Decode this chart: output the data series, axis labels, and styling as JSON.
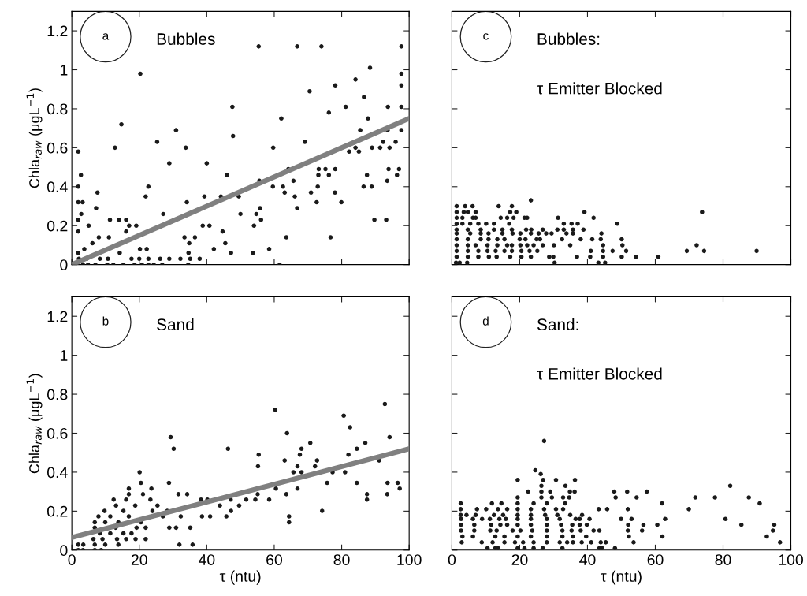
{
  "chart_data": [
    {
      "type": "scatter",
      "ylabel": "Chla$_{raw}$ (μgL$^{−1}$)",
      "xlim": [
        0,
        100
      ],
      "ylim": [
        0,
        1.3
      ],
      "xticks": [
        0,
        20,
        40,
        60,
        80,
        100
      ],
      "yticks": [
        0,
        0.2,
        0.4,
        0.6,
        0.8,
        1,
        1.2
      ],
      "tick_labels": "y",
      "annotations": [
        "a",
        "Bubbles"
      ],
      "series": [
        {
          "color": "#1a1a1a",
          "marker": "circle",
          "x": [
            55.4,
            66.8,
            74.0,
            97.7,
            20.3,
            88.4,
            97.7,
            97.7,
            97.7,
            97.7,
            84.1,
            78.1,
            70.5,
            86.6,
            81.2,
            93.7,
            47.6,
            76.2,
            62.1,
            87.8,
            14.7,
            30.9,
            85.5,
            93.6,
            47.8,
            25.3,
            69.1,
            92.3,
            96.0,
            1.9,
            12.8,
            33.8,
            59.7,
            84.1,
            89.0,
            91.4,
            94.2,
            82.2,
            85.1,
            28.9,
            40.0,
            2.7,
            46.0,
            73.1,
            76.2,
            87.5,
            96.4,
            64.2,
            73.2,
            75.2,
            78.1,
            93.9,
            97.0,
            55.6,
            65.7,
            93.5,
            1.9,
            22.7,
            59.6,
            62.6,
            72.9,
            86.5,
            88.9,
            7.6,
            63.1,
            70.9,
            78.0,
            21.9,
            39.3,
            44.2,
            49.5,
            66.1,
            34.1,
            72.6,
            79.9,
            7.2,
            55.8,
            66.8,
            50.0,
            54.7,
            27.1,
            11.3,
            14.0,
            16.1,
            56.1,
            89.7,
            93.2,
            5.0,
            17.0,
            19.1,
            38.8,
            40.8,
            54.0,
            1.9,
            16.1,
            44.7,
            8.0,
            11.0,
            33.4,
            36.5,
            63.6,
            76.7,
            6.1,
            34.8,
            45.5,
            20.2,
            42.1,
            58.5,
            22.2,
            14.2,
            34.6,
            47.2,
            53.7,
            1.9,
            3.7,
            1.9,
            1.9,
            3.2,
            2.8,
            1.6,
            3.3,
            4.8,
            7.0,
            10.5,
            12.3,
            15.3,
            18.6,
            20.8,
            22.7,
            24.3,
            26.8,
            34.5,
            61.6,
            2.1,
            4.4,
            8.3,
            10.7,
            17.7,
            20.0,
            22.7,
            26.2,
            28.9,
            32.2,
            35.1,
            37.9
          ],
          "values": [
            1.12,
            1.12,
            1.12,
            1.12,
            0.98,
            1.01,
            0.98,
            0.92,
            0.81,
            0.69,
            0.95,
            0.92,
            0.89,
            0.86,
            0.81,
            0.81,
            0.81,
            0.78,
            0.75,
            0.75,
            0.72,
            0.69,
            0.69,
            0.69,
            0.66,
            0.63,
            0.63,
            0.63,
            0.63,
            0.58,
            0.6,
            0.6,
            0.6,
            0.6,
            0.6,
            0.6,
            0.6,
            0.58,
            0.58,
            0.52,
            0.52,
            0.46,
            0.46,
            0.46,
            0.46,
            0.46,
            0.46,
            0.49,
            0.49,
            0.49,
            0.49,
            0.49,
            0.49,
            0.43,
            0.43,
            0.43,
            0.4,
            0.4,
            0.4,
            0.4,
            0.4,
            0.4,
            0.4,
            0.37,
            0.37,
            0.37,
            0.37,
            0.35,
            0.35,
            0.35,
            0.35,
            0.35,
            0.32,
            0.32,
            0.32,
            0.29,
            0.29,
            0.29,
            0.26,
            0.26,
            0.26,
            0.23,
            0.23,
            0.23,
            0.23,
            0.23,
            0.23,
            0.2,
            0.2,
            0.2,
            0.2,
            0.2,
            0.2,
            0.17,
            0.17,
            0.17,
            0.14,
            0.14,
            0.14,
            0.14,
            0.14,
            0.14,
            0.11,
            0.11,
            0.11,
            0.08,
            0.08,
            0.08,
            0.08,
            0.06,
            0.06,
            0.06,
            0.06,
            0.06,
            0.08,
            0.23,
            0.32,
            0.32,
            0.26,
            0,
            0,
            0,
            0,
            0,
            0,
            0,
            0,
            0,
            0,
            0,
            0,
            0,
            0,
            0.03,
            0.03,
            0.03,
            0.03,
            0.03,
            0.03,
            0.03,
            0.03,
            0.03,
            0.03,
            0.03,
            0.03
          ]
        },
        {
          "type": "line",
          "color": "#808080",
          "line_style": "solid",
          "x": [
            0,
            100
          ],
          "values": [
            0.0,
            0.75
          ]
        }
      ]
    },
    {
      "type": "scatter",
      "xlim": [
        0,
        100
      ],
      "ylim": [
        0,
        1.3
      ],
      "xticks": [
        0,
        20,
        40,
        60,
        80,
        100
      ],
      "yticks": [
        0,
        0.2,
        0.4,
        0.6,
        0.8,
        1,
        1.2
      ],
      "tick_labels": false,
      "annotations": [
        "c",
        "Bubbles:",
        "τ Emitter Blocked"
      ],
      "series": [
        {
          "color": "#1a1a1a",
          "marker": "circle",
          "x": [
            23.3,
            1.4,
            3.9,
            6.1,
            13.8,
            17.7,
            1.4,
            3.5,
            4.7,
            7.0,
            17.2,
            19.0,
            39.1,
            73.8,
            1.4,
            3.1,
            6.2,
            7.0,
            14.4,
            16.3,
            18.2,
            21.4,
            22.2,
            31.3,
            41.8,
            1.4,
            3.1,
            5.4,
            7.8,
            10.1,
            12.4,
            16.9,
            33.0,
            35.3,
            37.1,
            48.8,
            1.4,
            4.7,
            8.5,
            12.4,
            14.9,
            17.7,
            21.9,
            23.4,
            26.8,
            31.1,
            33.0,
            35.7,
            38.8,
            1.4,
            5.4,
            8.5,
            10.8,
            14.9,
            17.9,
            20.2,
            23.3,
            25.6,
            27.8,
            29.4,
            33.8,
            35.7,
            44.1,
            1.4,
            4.7,
            8.5,
            10.8,
            13.4,
            15.5,
            20.0,
            21.7,
            25.0,
            26.0,
            32.5,
            38.0,
            41.4,
            43.9,
            50.1,
            1.4,
            4.7,
            7.0,
            10.5,
            13.4,
            16.3,
            17.7,
            20.2,
            22.2,
            24.1,
            26.8,
            30.1,
            34.9,
            44.6,
            50.3,
            72.2,
            1.4,
            4.7,
            7.8,
            10.5,
            12.9,
            15.5,
            17.7,
            20.5,
            22.9,
            25.2,
            41.0,
            44.6,
            47.4,
            51.4,
            69.3,
            74.4,
            89.9,
            1.4,
            4.7,
            7.8,
            10.9,
            13.2,
            17.2,
            20.5,
            23.3,
            28.7,
            29.9,
            36.9,
            40.8,
            44.6,
            50.1,
            54.3,
            60.9,
            1.2,
            2.3,
            4.5,
            30.3,
            43.2,
            45.2
          ],
          "values": [
            0.33,
            0.3,
            0.3,
            0.3,
            0.3,
            0.3,
            0.27,
            0.27,
            0.27,
            0.27,
            0.27,
            0.27,
            0.27,
            0.27,
            0.24,
            0.24,
            0.24,
            0.24,
            0.24,
            0.24,
            0.24,
            0.24,
            0.24,
            0.24,
            0.24,
            0.21,
            0.21,
            0.21,
            0.21,
            0.21,
            0.21,
            0.21,
            0.21,
            0.21,
            0.21,
            0.21,
            0.18,
            0.18,
            0.18,
            0.18,
            0.18,
            0.18,
            0.18,
            0.18,
            0.18,
            0.18,
            0.18,
            0.18,
            0.18,
            0.16,
            0.16,
            0.16,
            0.16,
            0.16,
            0.16,
            0.16,
            0.16,
            0.16,
            0.16,
            0.16,
            0.16,
            0.16,
            0.16,
            0.13,
            0.13,
            0.13,
            0.13,
            0.13,
            0.13,
            0.13,
            0.13,
            0.13,
            0.13,
            0.13,
            0.13,
            0.13,
            0.13,
            0.13,
            0.1,
            0.1,
            0.1,
            0.1,
            0.1,
            0.1,
            0.1,
            0.1,
            0.1,
            0.1,
            0.1,
            0.1,
            0.1,
            0.1,
            0.1,
            0.1,
            0.07,
            0.07,
            0.07,
            0.07,
            0.07,
            0.07,
            0.07,
            0.07,
            0.07,
            0.07,
            0.07,
            0.07,
            0.07,
            0.07,
            0.07,
            0.07,
            0.07,
            0.04,
            0.04,
            0.04,
            0.04,
            0.04,
            0.04,
            0.04,
            0.04,
            0.04,
            0.04,
            0.04,
            0.04,
            0.04,
            0.04,
            0.04,
            0.04,
            0.01,
            0.01,
            0.01,
            0.01,
            0.01,
            0.01
          ]
        }
      ]
    },
    {
      "type": "scatter",
      "xlabel": "τ (ntu)",
      "ylabel": "Chla$_{raw}$ (μgL$^{−1}$)",
      "xlim": [
        0,
        100
      ],
      "ylim": [
        0,
        1.3
      ],
      "xticks": [
        0,
        20,
        40,
        60,
        80,
        100
      ],
      "yticks": [
        0,
        0.2,
        0.4,
        0.6,
        0.8,
        1,
        1.2
      ],
      "annotations": [
        "b",
        "Sand"
      ],
      "series": [
        {
          "color": "#1a1a1a",
          "marker": "circle",
          "x": [
            60.3,
            92.8,
            80.6,
            82.5,
            63.8,
            29.3,
            94.2,
            70.7,
            87.0,
            30.2,
            46.3,
            68.1,
            84.5,
            55.4,
            67.6,
            82.0,
            63.1,
            72.7,
            91.1,
            55.2,
            66.9,
            72.1,
            20.1,
            65.7,
            68.1,
            77.3,
            81.0,
            20.5,
            28.8,
            75.7,
            84.5,
            93.6,
            96.6,
            16.9,
            23.6,
            60.5,
            66.9,
            97.2,
            16.9,
            21.1,
            31.6,
            34.2,
            55.1,
            63.6,
            87.5,
            93.5,
            12.4,
            16.1,
            23.3,
            38.3,
            40.2,
            47.1,
            51.7,
            54.4,
            58.5,
            87.5,
            13.1,
            18.8,
            25.4,
            43.9,
            49.6,
            9.7,
            15.3,
            23.9,
            28.3,
            47.2,
            74.2,
            7.9,
            11.4,
            16.9,
            27.0,
            32.3,
            38.6,
            41.0,
            45.8,
            64.4,
            64.4,
            6.8,
            9.9,
            13.8,
            20.5,
            6.8,
            13.0,
            19.2,
            21.9,
            28.9,
            30.9,
            35.1,
            8.3,
            11.4,
            15.3,
            17.7,
            6.4,
            9.1,
            13.4,
            16.1,
            18.9,
            21.9,
            6.8,
            9.9,
            13.8,
            1.9,
            3.4,
            31.9,
            35.8,
            1.9,
            3.3,
            6.8,
            8.7
          ],
          "values": [
            0.72,
            0.75,
            0.69,
            0.63,
            0.6,
            0.58,
            0.58,
            0.55,
            0.55,
            0.52,
            0.52,
            0.52,
            0.52,
            0.49,
            0.49,
            0.49,
            0.46,
            0.46,
            0.46,
            0.43,
            0.43,
            0.43,
            0.4,
            0.4,
            0.4,
            0.4,
            0.4,
            0.345,
            0.345,
            0.345,
            0.345,
            0.345,
            0.345,
            0.316,
            0.316,
            0.316,
            0.316,
            0.316,
            0.287,
            0.287,
            0.287,
            0.287,
            0.287,
            0.287,
            0.287,
            0.287,
            0.259,
            0.259,
            0.259,
            0.259,
            0.259,
            0.259,
            0.259,
            0.259,
            0.259,
            0.259,
            0.229,
            0.229,
            0.229,
            0.229,
            0.229,
            0.201,
            0.201,
            0.201,
            0.201,
            0.201,
            0.201,
            0.173,
            0.173,
            0.173,
            0.173,
            0.173,
            0.173,
            0.173,
            0.173,
            0.173,
            0.143,
            0.143,
            0.143,
            0.143,
            0.143,
            0.115,
            0.115,
            0.115,
            0.115,
            0.115,
            0.115,
            0.115,
            0.086,
            0.086,
            0.086,
            0.086,
            0.057,
            0.057,
            0.057,
            0.057,
            0.057,
            0.057,
            0.028,
            0.028,
            0.028,
            0.028,
            0.028,
            0.028,
            0.028,
            0,
            0,
            0,
            0
          ]
        },
        {
          "type": "line",
          "color": "#808080",
          "line_style": "solid",
          "x": [
            0,
            100
          ],
          "values": [
            0.065,
            0.52
          ]
        }
      ]
    },
    {
      "type": "scatter",
      "xlabel": "τ (ntu)",
      "xlim": [
        0,
        100
      ],
      "ylim": [
        0,
        1.3
      ],
      "xticks": [
        0,
        20,
        40,
        60,
        80,
        100
      ],
      "yticks": [
        0,
        0.2,
        0.4,
        0.6,
        0.8,
        1,
        1.2
      ],
      "tick_labels": "x",
      "annotations": [
        "d",
        "Sand:",
        "τ Emitter Blocked"
      ],
      "series": [
        {
          "color": "#1a1a1a",
          "marker": "circle",
          "x": [
            27.2,
            24.6,
            26.2,
            19.4,
            26.9,
            30.7,
            36.3,
            26.4,
            33.5,
            82.1,
            22.5,
            26.4,
            29.0,
            34.8,
            36.2,
            47.9,
            51.7,
            57.5,
            19.4,
            26.4,
            29.5,
            32.8,
            34.6,
            48.3,
            54.5,
            71.8,
            77.6,
            87.6,
            2.6,
            11.8,
            14.6,
            19.4,
            24.1,
            28.0,
            33.4,
            62.0,
            90.8,
            2.6,
            7.4,
            10.1,
            13.6,
            16.3,
            19.4,
            23.3,
            27.2,
            30.7,
            32.8,
            43.3,
            45.8,
            51.9,
            69.9,
            2.6,
            4.3,
            7.0,
            12.4,
            15.1,
            19.4,
            23.3,
            27.5,
            31.1,
            34.9,
            38.4,
            2.7,
            6.2,
            8.9,
            11.2,
            14.0,
            15.9,
            19.4,
            23.3,
            28.0,
            31.8,
            36.5,
            37.7,
            40.6,
            49.9,
            53.0,
            62.9,
            80.7,
            2.7,
            6.6,
            11.6,
            14.3,
            16.3,
            19.4,
            23.3,
            28.0,
            32.2,
            35.5,
            37.7,
            39.8,
            52.0,
            56.5,
            60.6,
            85.4,
            95.1,
            2.7,
            6.6,
            11.3,
            13.2,
            17.9,
            20.2,
            23.7,
            28.0,
            32.6,
            35.3,
            38.0,
            41.8,
            43.5,
            51.9,
            56.1,
            94.7,
            3.1,
            6.2,
            12.8,
            15.5,
            19.4,
            23.3,
            28.0,
            32.6,
            35.7,
            39.6,
            52.2,
            62.1,
            92.9,
            2.9,
            8.8,
            12.0,
            15.5,
            18.6,
            21.0,
            24.1,
            28.0,
            31.8,
            34.0,
            35.7,
            38.3,
            41.1,
            43.9,
            45.4,
            53.6,
            96.8,
            10.5,
            12.8,
            13.6,
            19.4,
            21.4,
            24.1,
            26.8,
            32.6,
            43.5,
            44.3,
            48.1
          ],
          "values": [
            0.56,
            0.41,
            0.39,
            0.36,
            0.36,
            0.36,
            0.36,
            0.33,
            0.33,
            0.33,
            0.3,
            0.3,
            0.3,
            0.3,
            0.3,
            0.3,
            0.3,
            0.3,
            0.27,
            0.27,
            0.27,
            0.27,
            0.27,
            0.27,
            0.27,
            0.27,
            0.27,
            0.27,
            0.24,
            0.24,
            0.24,
            0.24,
            0.24,
            0.24,
            0.24,
            0.24,
            0.24,
            0.21,
            0.21,
            0.21,
            0.21,
            0.21,
            0.21,
            0.21,
            0.21,
            0.21,
            0.21,
            0.21,
            0.21,
            0.21,
            0.21,
            0.18,
            0.18,
            0.18,
            0.18,
            0.18,
            0.18,
            0.18,
            0.18,
            0.18,
            0.18,
            0.18,
            0.16,
            0.16,
            0.16,
            0.16,
            0.16,
            0.16,
            0.16,
            0.16,
            0.16,
            0.16,
            0.16,
            0.16,
            0.16,
            0.16,
            0.16,
            0.16,
            0.16,
            0.13,
            0.13,
            0.13,
            0.13,
            0.13,
            0.13,
            0.13,
            0.13,
            0.13,
            0.13,
            0.13,
            0.13,
            0.13,
            0.13,
            0.13,
            0.13,
            0.13,
            0.1,
            0.1,
            0.1,
            0.1,
            0.1,
            0.1,
            0.1,
            0.1,
            0.1,
            0.1,
            0.1,
            0.1,
            0.1,
            0.1,
            0.1,
            0.1,
            0.07,
            0.07,
            0.07,
            0.07,
            0.07,
            0.07,
            0.07,
            0.07,
            0.07,
            0.07,
            0.07,
            0.07,
            0.07,
            0.04,
            0.04,
            0.04,
            0.04,
            0.04,
            0.04,
            0.04,
            0.04,
            0.04,
            0.04,
            0.04,
            0.04,
            0.04,
            0.04,
            0.04,
            0.04,
            0.04,
            0.01,
            0.01,
            0.01,
            0.01,
            0.01,
            0.01,
            0.01,
            0.01,
            0.01,
            0.01,
            0.01
          ]
        }
      ]
    }
  ]
}
